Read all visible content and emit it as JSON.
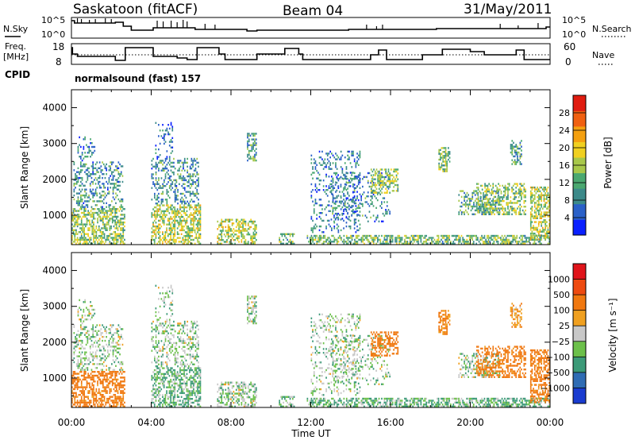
{
  "header": {
    "station": "Saskatoon (fitACF)",
    "beam": "Beam 04",
    "date": "31/May/2011"
  },
  "top_panels": {
    "nsky_label": "N.Sky",
    "nsky_ticks": [
      "10^5",
      "10^0"
    ],
    "nsearch_label": "N.Search",
    "nsearch_ticks": [
      "10^5",
      "10^0"
    ],
    "freq_label_1": "Freq.",
    "freq_label_2": "[MHz]",
    "freq_ticks": [
      "18",
      "8"
    ],
    "nave_label": "Nave",
    "nave_ticks": [
      "60",
      "0"
    ],
    "cpid_label": "CPID",
    "cpid_text": "normalsound (fast) 157"
  },
  "chart_data": [
    {
      "type": "heatmap",
      "name": "power",
      "ylabel": "Slant Range [km]",
      "xlabel": "Time UT",
      "xlim": [
        "00:00",
        "24:00"
      ],
      "ylim": [
        180,
        4500
      ],
      "x_ticks": [
        "00:00",
        "04:00",
        "08:00",
        "12:00",
        "16:00",
        "20:00",
        "00:00"
      ],
      "y_ticks": [
        1000,
        2000,
        3000,
        4000
      ],
      "colorbar": {
        "label": "Power [dB]",
        "range": [
          0,
          32
        ],
        "ticks": [
          4,
          8,
          12,
          16,
          20,
          24,
          28
        ],
        "colors": [
          "#0a20ff",
          "#2a60c8",
          "#3c8a8a",
          "#4aa870",
          "#a8c84a",
          "#f0d020",
          "#f4a010",
          "#f06010",
          "#e01c10"
        ]
      }
    },
    {
      "type": "heatmap",
      "name": "velocity",
      "ylabel": "Slant Range [km]",
      "xlabel": "Time UT",
      "xlim": [
        "00:00",
        "24:00"
      ],
      "ylim": [
        180,
        4500
      ],
      "x_ticks": [
        "00:00",
        "04:00",
        "08:00",
        "12:00",
        "16:00",
        "20:00",
        "00:00"
      ],
      "y_ticks": [
        1000,
        2000,
        3000,
        4000
      ],
      "colorbar": {
        "label": "Velocity [m s⁻¹]",
        "ticks": [
          "1000",
          "500",
          "100",
          "25",
          "−25",
          "−100",
          "−500",
          "−1000"
        ],
        "colors": [
          "#1a3cd0",
          "#2f6cb4",
          "#3c9a78",
          "#6cc04a",
          "#c8c8c8",
          "#f0a020",
          "#f07810",
          "#ee4a10",
          "#e0141a"
        ]
      }
    }
  ]
}
